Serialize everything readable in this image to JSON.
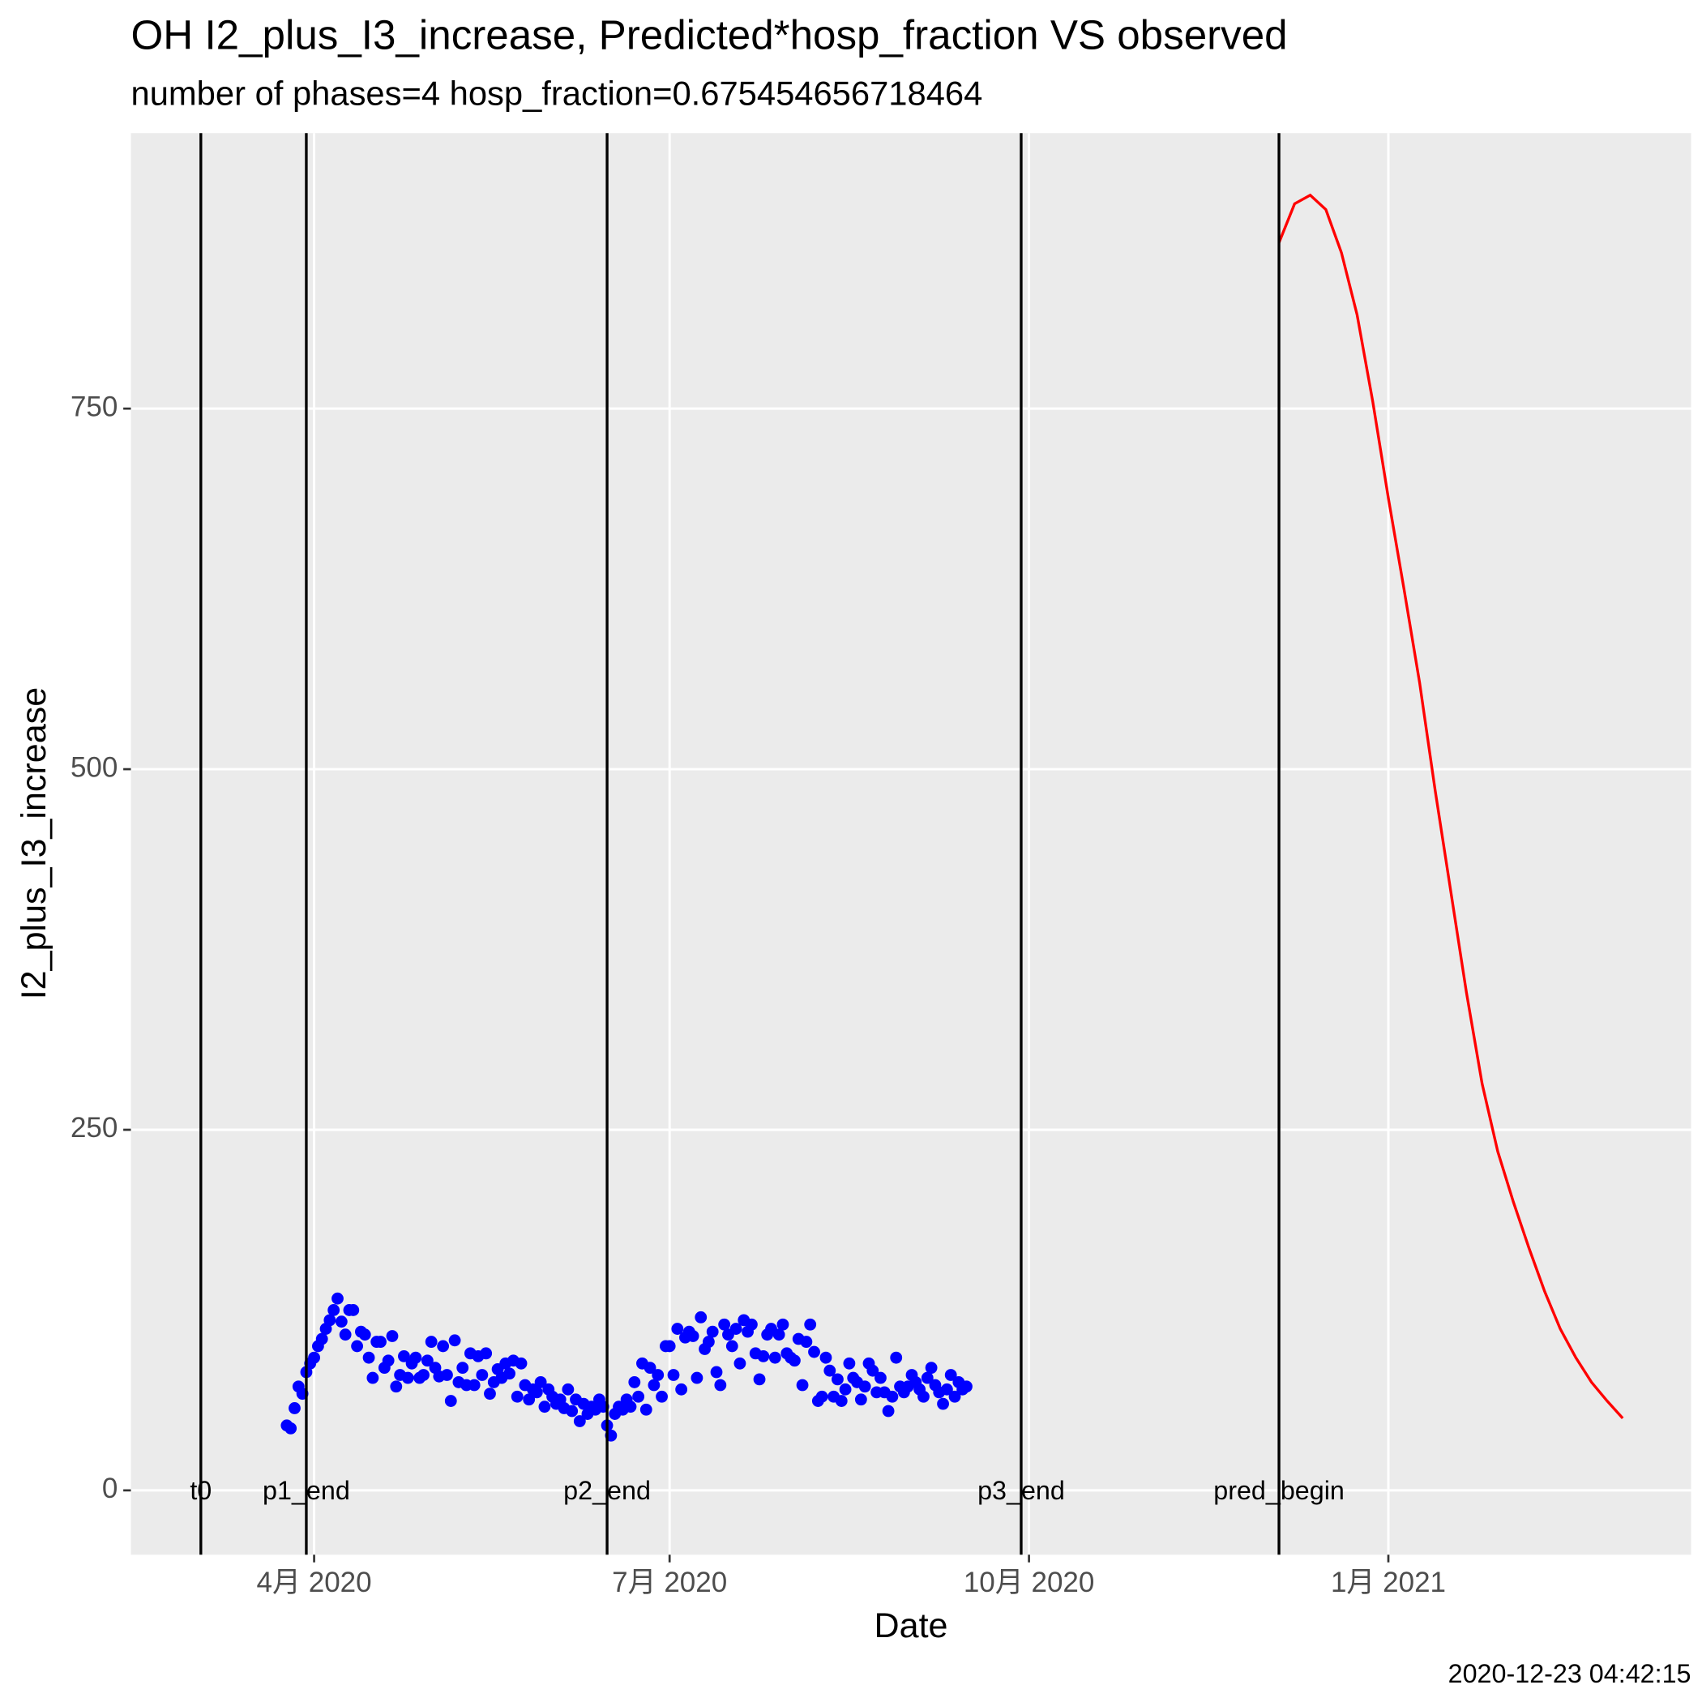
{
  "chart_data": {
    "type": "scatter_line",
    "title": "OH I2_plus_I3_increase, Predicted*hosp_fraction VS observed",
    "subtitle": "number of phases=4   hosp_fraction=0.675454656718464",
    "xlabel": "Date",
    "ylabel": "I2_plus_I3_increase",
    "footer": "2020-12-23 04:42:15",
    "xlim": [
      44.1,
      443.5
    ],
    "ylim": [
      -44.6,
      941
    ],
    "xticks": [
      {
        "value": 91,
        "label": "4月 2020"
      },
      {
        "value": 182,
        "label": "7月 2020"
      },
      {
        "value": 274,
        "label": "10月 2020"
      },
      {
        "value": 366,
        "label": "1月 2021"
      }
    ],
    "yticks": [
      0,
      250,
      500,
      750
    ],
    "grid": true,
    "vlines": [
      {
        "x": 62,
        "label": "t0"
      },
      {
        "x": 89,
        "label": "p1_end"
      },
      {
        "x": 166,
        "label": "p2_end"
      },
      {
        "x": 272,
        "label": "p3_end"
      },
      {
        "x": 338,
        "label": "pred_begin"
      }
    ],
    "series": [
      {
        "mark": "point",
        "color": "#0000FF",
        "x": [
          84,
          85,
          86,
          87,
          88,
          89,
          90,
          91,
          92,
          93,
          94,
          95,
          96,
          97,
          98,
          99,
          100,
          101,
          102,
          103,
          104,
          105,
          106,
          107,
          108,
          109,
          110,
          111,
          112,
          113,
          114,
          115,
          116,
          117,
          118,
          119,
          120,
          121,
          122,
          123,
          124,
          125,
          126,
          127,
          128,
          129,
          130,
          131,
          132,
          133,
          134,
          135,
          136,
          137,
          138,
          139,
          140,
          141,
          142,
          143,
          144,
          145,
          146,
          147,
          148,
          149,
          150,
          151,
          152,
          153,
          154,
          155,
          156,
          157,
          158,
          159,
          160,
          161,
          162,
          163,
          164,
          165,
          166,
          167,
          168,
          169,
          170,
          171,
          172,
          173,
          174,
          175,
          176,
          177,
          178,
          179,
          180,
          181,
          182,
          183,
          184,
          185,
          186,
          187,
          188,
          189,
          190,
          191,
          192,
          193,
          194,
          195,
          196,
          197,
          198,
          199,
          200,
          201,
          202,
          203,
          204,
          205,
          206,
          207,
          208,
          209,
          210,
          211,
          212,
          213,
          214,
          215,
          216,
          217,
          218,
          219,
          220,
          221,
          222,
          223,
          224,
          225,
          226,
          227,
          228,
          229,
          230,
          231,
          232,
          233,
          234,
          235,
          236,
          237,
          238,
          239,
          240,
          241,
          242,
          243,
          244,
          245,
          246,
          247,
          248,
          249,
          250,
          251,
          252,
          253,
          254,
          255,
          256,
          257,
          258
        ],
        "values": [
          45,
          43,
          57,
          72,
          67,
          82,
          88,
          92,
          100,
          105,
          112,
          118,
          125,
          133,
          117,
          108,
          125,
          125,
          100,
          110,
          108,
          92,
          78,
          103,
          103,
          85,
          90,
          107,
          72,
          80,
          93,
          78,
          88,
          92,
          78,
          80,
          90,
          103,
          85,
          79,
          100,
          80,
          62,
          104,
          75,
          85,
          73,
          95,
          73,
          93,
          80,
          95,
          67,
          75,
          84,
          78,
          88,
          81,
          90,
          65,
          88,
          73,
          63,
          70,
          68,
          75,
          58,
          70,
          65,
          60,
          63,
          57,
          70,
          55,
          63,
          48,
          60,
          53,
          58,
          56,
          63,
          58,
          45,
          38,
          53,
          58,
          56,
          63,
          58,
          75,
          65,
          88,
          56,
          85,
          73,
          80,
          65,
          100,
          100,
          80,
          112,
          70,
          106,
          110,
          107,
          78,
          120,
          98,
          103,
          110,
          82,
          73,
          115,
          108,
          100,
          112,
          88,
          118,
          110,
          115,
          95,
          77,
          93,
          108,
          112,
          92,
          108,
          115,
          95,
          92,
          90,
          105,
          73,
          103,
          115,
          96,
          62,
          65,
          92,
          83,
          65,
          77,
          62,
          70,
          88,
          78,
          75,
          63,
          72,
          88,
          83,
          68,
          78,
          68,
          55,
          65,
          92,
          72,
          68,
          72,
          80,
          75,
          70,
          65,
          78,
          85,
          73,
          68,
          60,
          70,
          80,
          65,
          75,
          70,
          72
        ]
      },
      {
        "mark": "line",
        "color": "#FF0000",
        "x": [
          338,
          342,
          346,
          350,
          354,
          358,
          362,
          366,
          370,
          374,
          378,
          382,
          386,
          390,
          394,
          398,
          402,
          406,
          410,
          414,
          418,
          422,
          426
        ],
        "values": [
          865,
          892,
          898,
          888,
          858,
          815,
          755,
          688,
          625,
          560,
          485,
          415,
          345,
          282,
          235,
          200,
          168,
          138,
          112,
          92,
          75,
          62,
          50
        ]
      }
    ]
  }
}
